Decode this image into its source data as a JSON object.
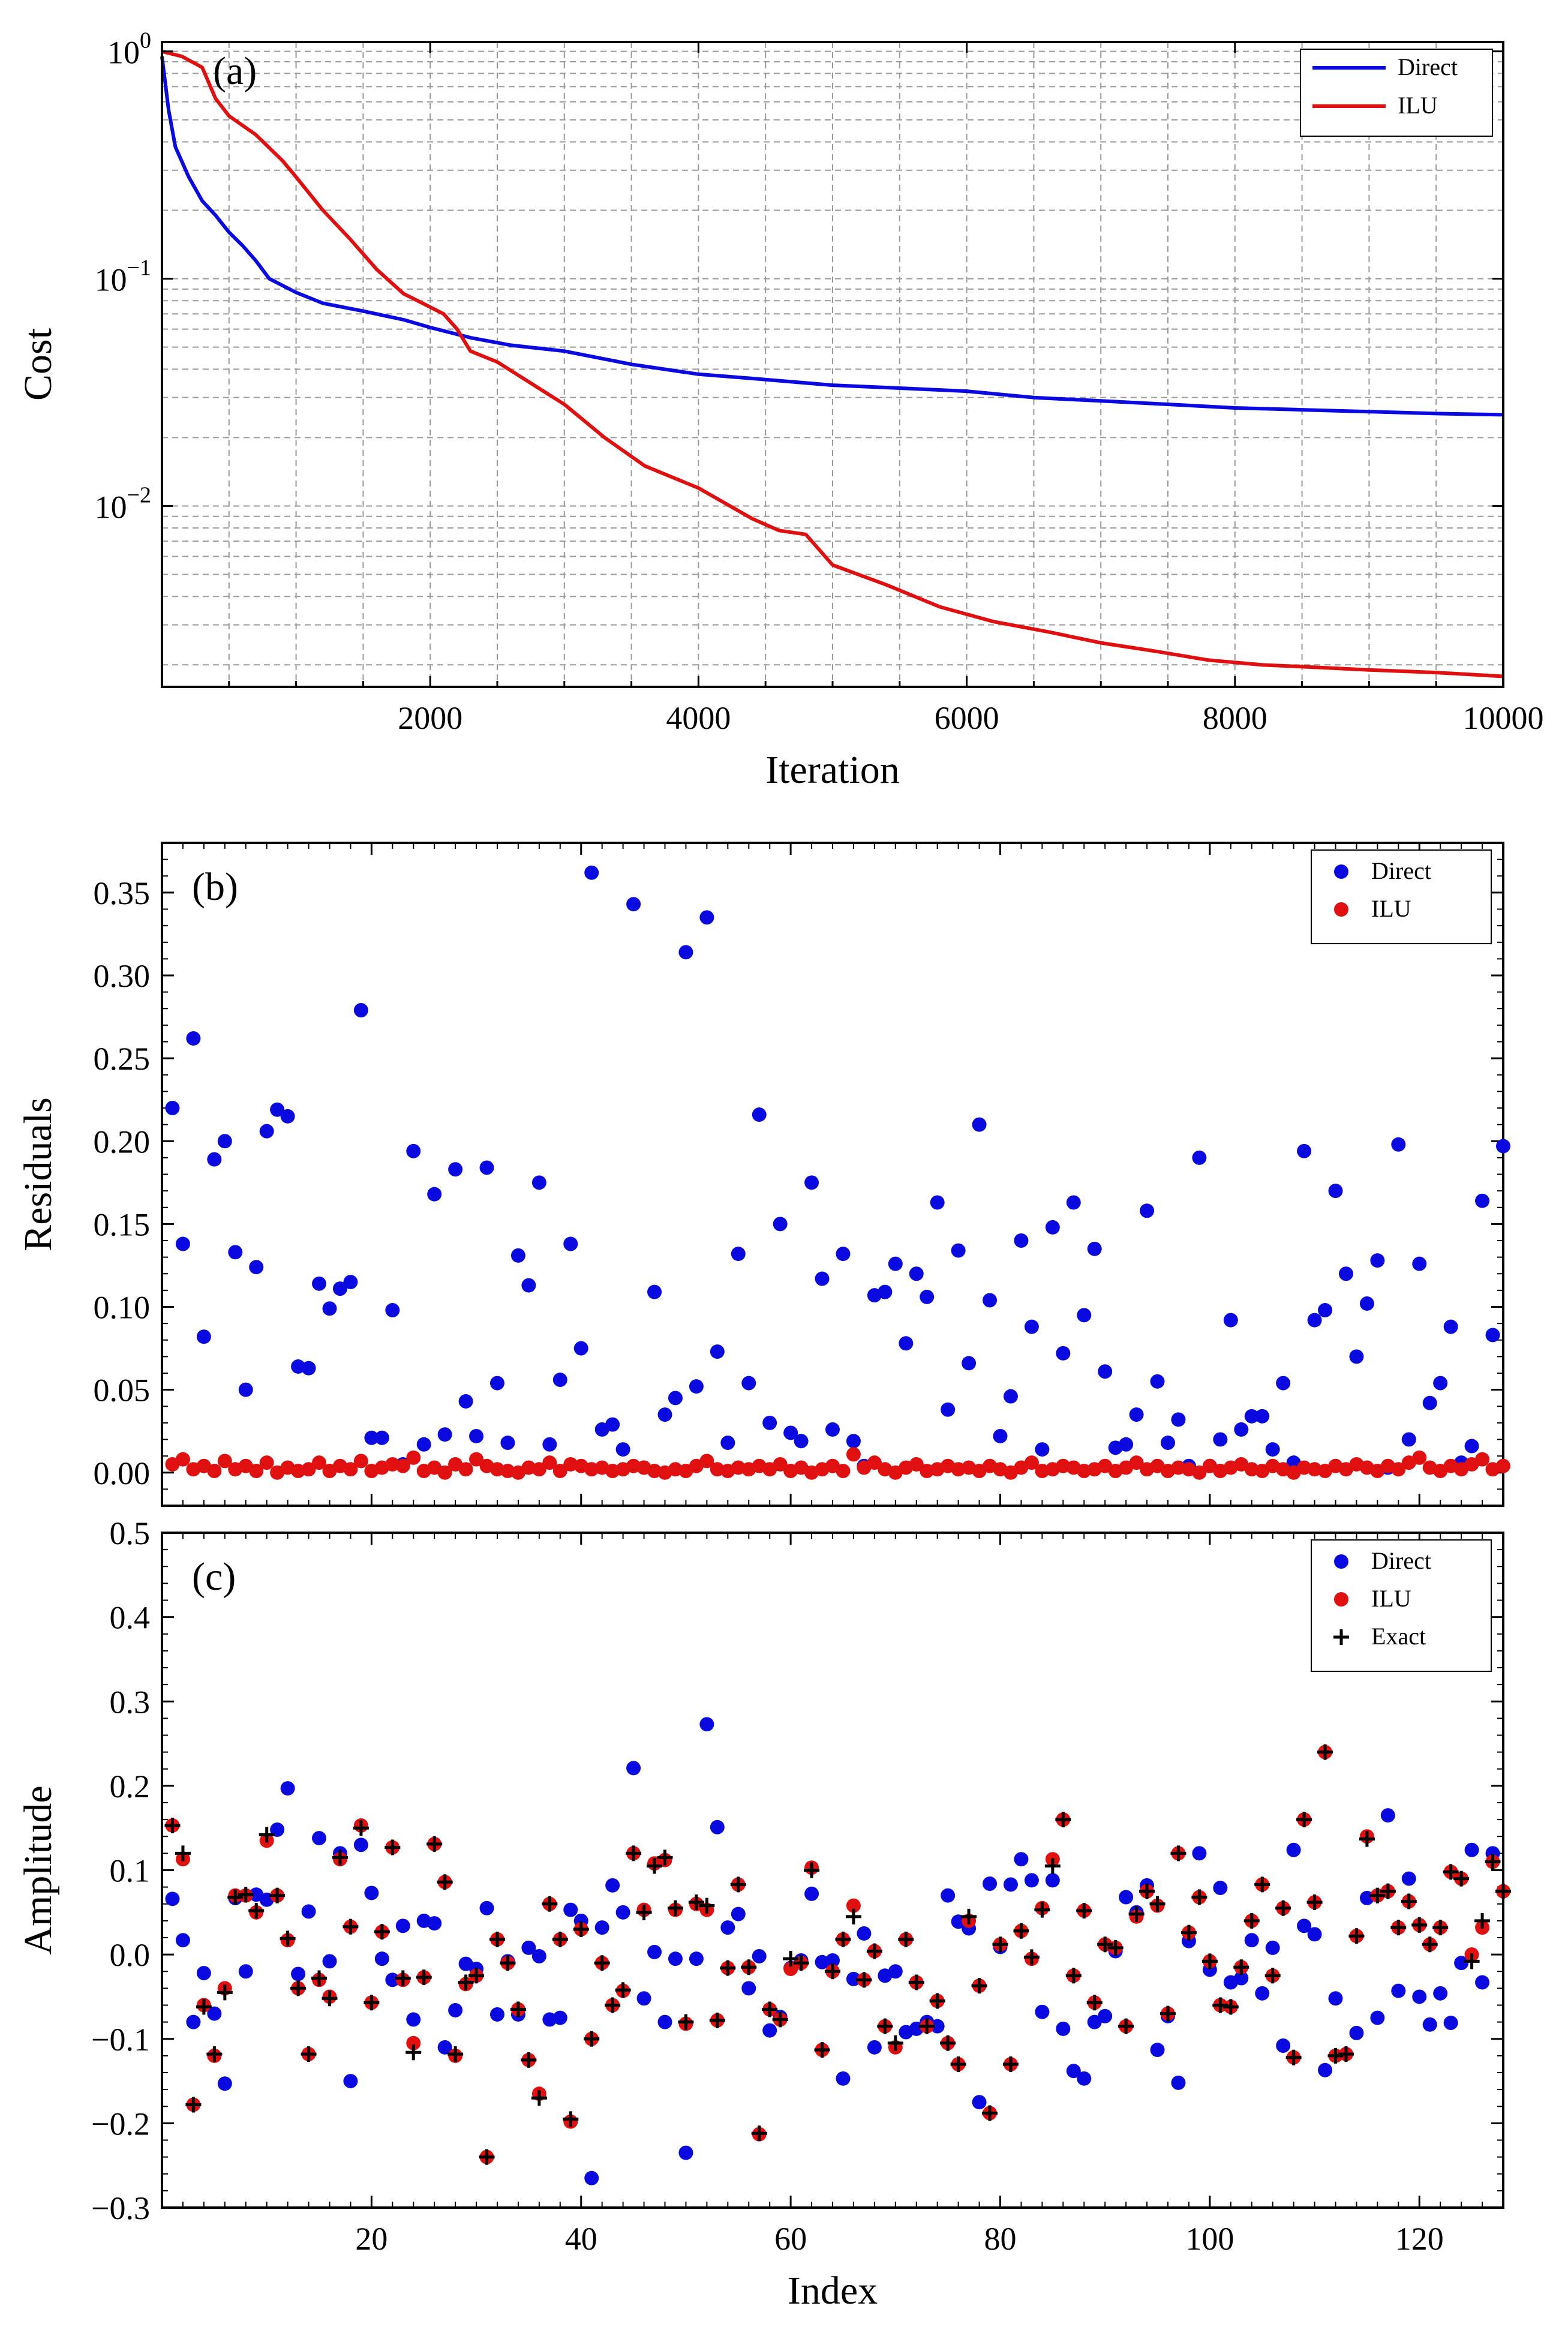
{
  "chart_data": [
    {
      "type": "line",
      "panel_label": "(a)",
      "xlabel": "Iteration",
      "ylabel": "Cost",
      "yscale": "log",
      "xlim": [
        0,
        10000
      ],
      "ylim": [
        0.0016,
        1.1
      ],
      "xticks": [
        2000,
        4000,
        6000,
        8000,
        10000
      ],
      "xtick_labels": [
        "2000",
        "4000",
        "6000",
        "8000",
        "10000"
      ],
      "ytick_labels": [
        {
          "base": "10",
          "exp": "0",
          "value": 1
        },
        {
          "base": "10",
          "exp": "−1",
          "value": 0.1
        },
        {
          "base": "10",
          "exp": "−2",
          "value": 0.01
        }
      ],
      "grid": true,
      "legend_position": "top-right",
      "series": [
        {
          "name": "Direct",
          "color": "#0a0ae0",
          "x": [
            0,
            50,
            100,
            200,
            300,
            400,
            500,
            600,
            700,
            800,
            1000,
            1200,
            1500,
            1800,
            2000,
            2300,
            2600,
            3000,
            3500,
            4000,
            4500,
            5000,
            5500,
            6000,
            6500,
            7000,
            7500,
            8000,
            8500,
            9000,
            9500,
            10000
          ],
          "y": [
            0.95,
            0.55,
            0.38,
            0.28,
            0.22,
            0.19,
            0.16,
            0.14,
            0.12,
            0.1,
            0.087,
            0.078,
            0.072,
            0.066,
            0.061,
            0.055,
            0.051,
            0.048,
            0.042,
            0.038,
            0.036,
            0.034,
            0.033,
            0.032,
            0.03,
            0.029,
            0.028,
            0.027,
            0.0265,
            0.026,
            0.0255,
            0.0252
          ]
        },
        {
          "name": "ILU",
          "color": "#e01010",
          "x": [
            0,
            150,
            300,
            400,
            500,
            700,
            900,
            1000,
            1200,
            1400,
            1600,
            1800,
            2000,
            2100,
            2200,
            2300,
            2500,
            3000,
            3300,
            3600,
            4000,
            4400,
            4600,
            4800,
            5000,
            5400,
            5800,
            6200,
            6600,
            7000,
            7400,
            7800,
            8200,
            8600,
            9000,
            9500,
            10000
          ],
          "y": [
            1.0,
            0.95,
            0.85,
            0.62,
            0.52,
            0.43,
            0.33,
            0.28,
            0.2,
            0.15,
            0.11,
            0.086,
            0.075,
            0.07,
            0.06,
            0.048,
            0.043,
            0.028,
            0.02,
            0.015,
            0.012,
            0.0088,
            0.0078,
            0.0075,
            0.0055,
            0.0045,
            0.0036,
            0.0031,
            0.0028,
            0.0025,
            0.0023,
            0.0021,
            0.002,
            0.00195,
            0.0019,
            0.00185,
            0.00178
          ]
        }
      ]
    },
    {
      "type": "scatter",
      "panel_label": "(b)",
      "xlabel": "",
      "ylabel": "Residuals",
      "xlim": [
        0,
        128
      ],
      "ylim": [
        -0.02,
        0.38
      ],
      "yticks": [
        0.0,
        0.05,
        0.1,
        0.15,
        0.2,
        0.25,
        0.3,
        0.35
      ],
      "ytick_labels": [
        "0.00",
        "0.05",
        "0.10",
        "0.15",
        "0.20",
        "0.25",
        "0.30",
        "0.35"
      ],
      "legend_position": "top-right",
      "series": [
        {
          "name": "Direct",
          "color": "#0a0ae0",
          "values": [
            0.22,
            0.138,
            0.262,
            0.082,
            0.189,
            0.2,
            0.133,
            0.05,
            0.124,
            0.206,
            0.219,
            0.215,
            0.064,
            0.063,
            0.114,
            0.099,
            0.111,
            0.115,
            0.279,
            0.021,
            0.021,
            0.098,
            0.005,
            0.194,
            0.017,
            0.168,
            0.023,
            0.183,
            0.043,
            0.022,
            0.184,
            0.054,
            0.018,
            0.131,
            0.113,
            0.175,
            0.017,
            0.056,
            0.138,
            0.075,
            0.362,
            0.026,
            0.029,
            0.014,
            0.343,
            0.003,
            0.109,
            0.035,
            0.045,
            0.314,
            0.052,
            0.335,
            0.073,
            0.018,
            0.132,
            0.054,
            0.216,
            0.03,
            0.15,
            0.024,
            0.019,
            0.175,
            0.117,
            0.026,
            0.132,
            0.019,
            0.004,
            0.107,
            0.109,
            0.126,
            0.078,
            0.12,
            0.106,
            0.163,
            0.038,
            0.134,
            0.066,
            0.21,
            0.104,
            0.022,
            0.046,
            0.14,
            0.088,
            0.014,
            0.148,
            0.072,
            0.163,
            0.095,
            0.135,
            0.061,
            0.015,
            0.017,
            0.035,
            0.158,
            0.055,
            0.018,
            0.032,
            0.004,
            0.19,
            0.004,
            0.02,
            0.092,
            0.026,
            0.034,
            0.034,
            0.014,
            0.054,
            0.006,
            0.194,
            0.092,
            0.098,
            0.17,
            0.12,
            0.07,
            0.102,
            0.128,
            0.003,
            0.198,
            0.02,
            0.126,
            0.042,
            0.054,
            0.088,
            0.006,
            0.016,
            0.164,
            0.083,
            0.197
          ]
        },
        {
          "name": "ILU",
          "color": "#e01010",
          "values": [
            0.005,
            0.008,
            0.002,
            0.004,
            0.001,
            0.007,
            0.002,
            0.004,
            0.001,
            0.006,
            0.0,
            0.003,
            0.001,
            0.002,
            0.006,
            0.001,
            0.004,
            0.002,
            0.007,
            0.001,
            0.003,
            0.005,
            0.004,
            0.009,
            0.001,
            0.003,
            0.0,
            0.005,
            0.002,
            0.008,
            0.004,
            0.002,
            0.001,
            0.0,
            0.003,
            0.002,
            0.006,
            0.001,
            0.005,
            0.004,
            0.002,
            0.003,
            0.001,
            0.002,
            0.004,
            0.003,
            0.001,
            0.0,
            0.002,
            0.001,
            0.004,
            0.007,
            0.002,
            0.001,
            0.003,
            0.002,
            0.004,
            0.002,
            0.005,
            0.001,
            0.003,
            0.0,
            0.002,
            0.004,
            0.001,
            0.011,
            0.003,
            0.006,
            0.002,
            0.0,
            0.003,
            0.005,
            0.001,
            0.002,
            0.004,
            0.002,
            0.003,
            0.001,
            0.004,
            0.002,
            0.0,
            0.003,
            0.006,
            0.001,
            0.002,
            0.004,
            0.003,
            0.001,
            0.002,
            0.004,
            0.001,
            0.003,
            0.006,
            0.002,
            0.004,
            0.001,
            0.003,
            0.002,
            0.0,
            0.004,
            0.001,
            0.003,
            0.005,
            0.002,
            0.001,
            0.004,
            0.002,
            0.0,
            0.003,
            0.002,
            0.001,
            0.004,
            0.002,
            0.005,
            0.003,
            0.001,
            0.004,
            0.002,
            0.006,
            0.009,
            0.003,
            0.001,
            0.004,
            0.002,
            0.005,
            0.008,
            0.002,
            0.004
          ]
        }
      ]
    },
    {
      "type": "scatter",
      "panel_label": "(c)",
      "xlabel": "Index",
      "ylabel": "Amplitude",
      "xlim": [
        0,
        128
      ],
      "ylim": [
        -0.3,
        0.5
      ],
      "xticks": [
        20,
        40,
        60,
        80,
        100,
        120
      ],
      "xtick_labels": [
        "20",
        "40",
        "60",
        "80",
        "100",
        "120"
      ],
      "yticks": [
        -0.3,
        -0.2,
        -0.1,
        0.0,
        0.1,
        0.2,
        0.3,
        0.4,
        0.5
      ],
      "ytick_labels": [
        "−0.3",
        "−0.2",
        "−0.1",
        "0.0",
        "0.1",
        "0.2",
        "0.3",
        "0.4",
        "0.5"
      ],
      "legend_position": "top-right",
      "series": [
        {
          "name": "Direct",
          "color": "#0a0ae0",
          "values": [
            0.066,
            0.017,
            -0.08,
            -0.022,
            -0.07,
            -0.153,
            0.067,
            -0.02,
            0.071,
            0.065,
            0.148,
            0.197,
            -0.023,
            0.051,
            0.138,
            -0.008,
            0.12,
            -0.15,
            0.13,
            0.073,
            -0.005,
            -0.03,
            0.034,
            -0.077,
            0.04,
            0.037,
            -0.11,
            -0.066,
            -0.011,
            -0.017,
            0.055,
            -0.071,
            -0.008,
            -0.071,
            0.008,
            -0.002,
            -0.077,
            -0.075,
            0.053,
            0.04,
            -0.265,
            0.032,
            0.082,
            0.05,
            0.221,
            -0.052,
            0.003,
            -0.08,
            -0.005,
            -0.235,
            -0.005,
            0.273,
            0.151,
            0.032,
            0.048,
            -0.04,
            -0.002,
            -0.09,
            -0.074,
            -0.016,
            -0.007,
            0.072,
            -0.009,
            -0.007,
            -0.147,
            -0.029,
            0.025,
            -0.11,
            -0.025,
            -0.02,
            -0.092,
            -0.088,
            -0.08,
            -0.085,
            0.07,
            0.039,
            0.031,
            -0.175,
            0.084,
            0.009,
            0.083,
            0.113,
            0.088,
            -0.068,
            0.088,
            -0.088,
            -0.138,
            -0.147,
            -0.08,
            -0.073,
            0.004,
            0.068,
            0.05,
            0.082,
            -0.113,
            -0.073,
            -0.152,
            0.016,
            0.12,
            -0.018,
            0.079,
            -0.033,
            -0.028,
            0.017,
            -0.046,
            0.008,
            -0.108,
            0.124,
            0.034,
            0.024,
            -0.137,
            -0.052,
            -0.118,
            -0.093,
            0.067,
            -0.075,
            0.165,
            -0.043,
            0.09,
            -0.05,
            -0.083,
            -0.046,
            -0.081,
            -0.01,
            0.124,
            -0.033,
            0.12
          ]
        },
        {
          "name": "ILU",
          "color": "#e01010",
          "values": [
            0.153,
            0.113,
            -0.178,
            -0.06,
            -0.12,
            -0.04,
            0.07,
            0.07,
            0.05,
            0.135,
            0.07,
            0.017,
            -0.04,
            -0.118,
            -0.03,
            -0.05,
            0.113,
            0.033,
            0.153,
            -0.057,
            0.027,
            0.127,
            -0.03,
            -0.105,
            -0.027,
            0.131,
            0.086,
            -0.12,
            -0.035,
            -0.025,
            -0.24,
            0.018,
            -0.01,
            -0.065,
            -0.125,
            -0.165,
            0.06,
            0.018,
            -0.198,
            0.03,
            -0.1,
            -0.01,
            -0.06,
            -0.043,
            0.12,
            0.053,
            0.108,
            0.112,
            0.053,
            -0.082,
            0.06,
            0.053,
            -0.078,
            -0.016,
            0.083,
            -0.015,
            -0.213,
            -0.065,
            -0.077,
            -0.017,
            -0.01,
            0.103,
            -0.113,
            -0.02,
            0.018,
            0.058,
            -0.03,
            0.004,
            -0.085,
            -0.11,
            0.018,
            -0.033,
            -0.085,
            -0.055,
            -0.105,
            -0.13,
            0.04,
            -0.037,
            -0.188,
            0.012,
            -0.13,
            0.028,
            -0.005,
            0.055,
            0.113,
            0.16,
            -0.025,
            0.052,
            -0.057,
            0.012,
            0.008,
            -0.085,
            0.045,
            0.075,
            0.058,
            -0.07,
            0.12,
            0.026,
            0.068,
            -0.008,
            -0.06,
            -0.062,
            -0.015,
            0.04,
            0.083,
            -0.025,
            0.055,
            -0.122,
            0.16,
            0.062,
            0.24,
            -0.12,
            -0.118,
            0.022,
            0.14,
            0.07,
            0.075,
            0.032,
            0.063,
            0.035,
            0.012,
            0.032,
            0.098,
            0.09,
            0.0,
            0.032,
            0.11,
            0.075
          ]
        },
        {
          "name": "Exact",
          "color": "#000000",
          "values": [
            0.153,
            0.12,
            -0.178,
            -0.062,
            -0.118,
            -0.045,
            0.068,
            0.071,
            0.052,
            0.142,
            0.07,
            0.019,
            -0.04,
            -0.118,
            -0.028,
            -0.052,
            0.115,
            0.033,
            0.15,
            -0.057,
            0.027,
            0.127,
            -0.028,
            -0.116,
            -0.027,
            0.131,
            0.086,
            -0.118,
            -0.033,
            -0.025,
            -0.24,
            0.018,
            -0.01,
            -0.065,
            -0.125,
            -0.17,
            0.06,
            0.018,
            -0.195,
            0.03,
            -0.1,
            -0.01,
            -0.06,
            -0.042,
            0.12,
            0.05,
            0.105,
            0.115,
            0.055,
            -0.08,
            0.062,
            0.058,
            -0.078,
            -0.016,
            0.083,
            -0.015,
            -0.212,
            -0.065,
            -0.077,
            -0.005,
            -0.01,
            0.1,
            -0.113,
            -0.02,
            0.018,
            0.045,
            -0.03,
            0.004,
            -0.085,
            -0.105,
            0.018,
            -0.033,
            -0.085,
            -0.055,
            -0.105,
            -0.13,
            0.045,
            -0.037,
            -0.188,
            0.012,
            -0.13,
            0.028,
            -0.003,
            0.053,
            0.105,
            0.16,
            -0.025,
            0.052,
            -0.057,
            0.012,
            0.008,
            -0.085,
            0.048,
            0.075,
            0.06,
            -0.07,
            0.12,
            0.026,
            0.068,
            -0.008,
            -0.06,
            -0.062,
            -0.015,
            0.04,
            0.083,
            -0.025,
            0.055,
            -0.122,
            0.16,
            0.062,
            0.24,
            -0.12,
            -0.118,
            0.022,
            0.137,
            0.07,
            0.075,
            0.032,
            0.063,
            0.035,
            0.012,
            0.032,
            0.098,
            0.09,
            -0.008,
            0.04,
            0.11,
            0.075
          ]
        }
      ]
    }
  ]
}
